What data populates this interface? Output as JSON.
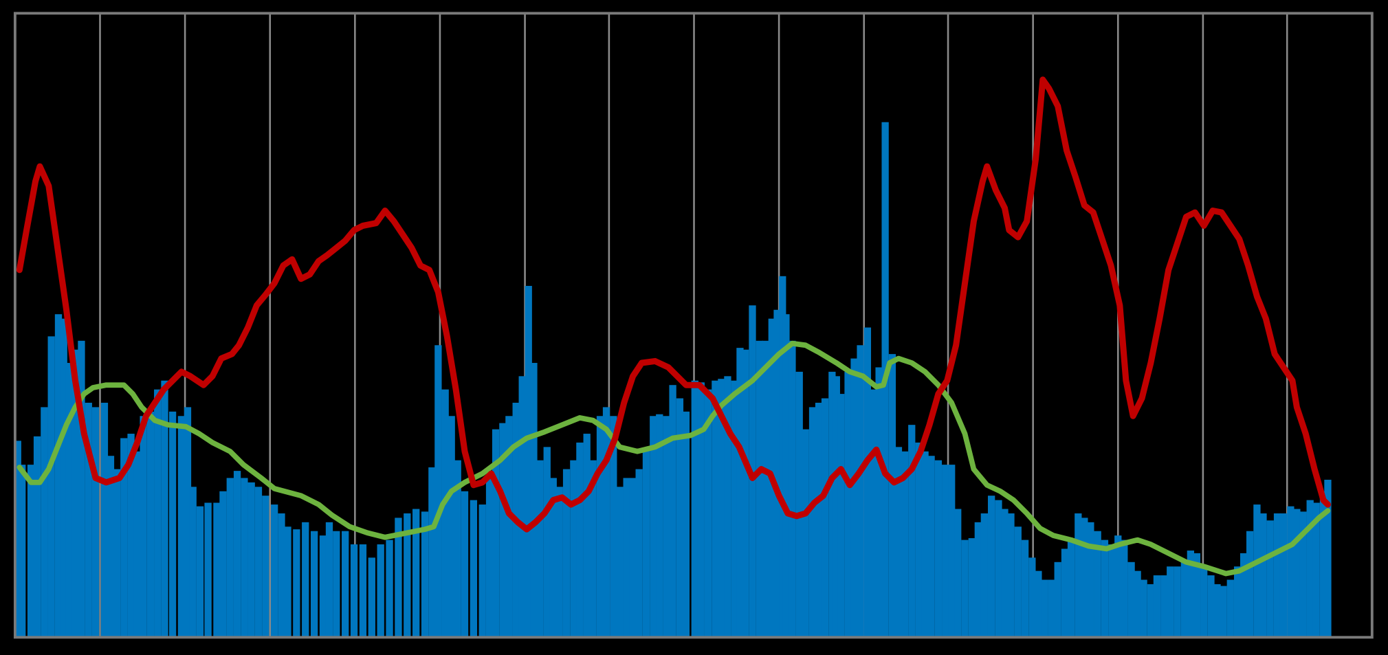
{
  "chart_data": {
    "type": "bar",
    "xlim": [
      17,
      1550
    ],
    "ylim": [
      0,
      705
    ],
    "xticks": [
      17,
      113,
      209,
      305,
      401,
      497,
      593,
      688,
      784,
      880,
      976,
      1071,
      1167,
      1263,
      1359,
      1454,
      1550
    ],
    "grid": true,
    "series": [
      {
        "type": "bar",
        "color": "#0077c0",
        "x": [
          20,
          25,
          35,
          42,
          50,
          58,
          66,
          72,
          78,
          85,
          92,
          100,
          108,
          118,
          125,
          132,
          140,
          148,
          155,
          162,
          170,
          178,
          186,
          195,
          205,
          212,
          218,
          226,
          235,
          245,
          252,
          260,
          268,
          276,
          284,
          292,
          300,
          310,
          318,
          325,
          335,
          345,
          355,
          365,
          372,
          380,
          390,
          400,
          410,
          420,
          430,
          440,
          450,
          460,
          470,
          480,
          488,
          495,
          503,
          510,
          517,
          525,
          535,
          545,
          553,
          560,
          568,
          575,
          583,
          590,
          597,
          603,
          610,
          618,
          625,
          632,
          640,
          648,
          655,
          663,
          670,
          678,
          685,
          693,
          700,
          708,
          715,
          722,
          730,
          738,
          745,
          753,
          760,
          768,
          775,
          785,
          792,
          800,
          808,
          815,
          822,
          830,
          836,
          842,
          850,
          858,
          865,
          872,
          878,
          884,
          888,
          895,
          903,
          910,
          918,
          925,
          932,
          940,
          945,
          950,
          958,
          965,
          972,
          980,
          986,
          993,
          1000,
          1008,
          1015,
          1022,
          1030,
          1038,
          1045,
          1052,
          1060,
          1068,
          1075,
          1082,
          1090,
          1098,
          1105,
          1112,
          1120,
          1128,
          1135,
          1142,
          1150,
          1158,
          1166,
          1173,
          1180,
          1188,
          1195,
          1203,
          1210,
          1218,
          1225,
          1232,
          1240,
          1248,
          1256,
          1263,
          1270,
          1278,
          1285,
          1292,
          1300,
          1307,
          1315,
          1322,
          1330,
          1338,
          1345,
          1352,
          1360,
          1368,
          1375,
          1382,
          1390,
          1398,
          1405,
          1412,
          1420,
          1427,
          1435,
          1443,
          1450,
          1458,
          1465,
          1472,
          1480,
          1487,
          1495,
          1500
        ],
        "values": [
          222,
          195,
          195,
          227,
          260,
          340,
          365,
          360,
          310,
          325,
          335,
          265,
          260,
          265,
          205,
          190,
          225,
          230,
          210,
          250,
          255,
          280,
          290,
          255,
          250,
          260,
          170,
          148,
          152,
          152,
          165,
          180,
          188,
          180,
          175,
          170,
          160,
          150,
          140,
          125,
          122,
          130,
          120,
          115,
          130,
          120,
          120,
          105,
          105,
          90,
          105,
          110,
          135,
          140,
          145,
          142,
          192,
          330,
          280,
          250,
          200,
          165,
          155,
          150,
          180,
          235,
          242,
          250,
          265,
          295,
          397,
          310,
          200,
          215,
          180,
          170,
          190,
          200,
          220,
          230,
          200,
          250,
          260,
          250,
          170,
          180,
          180,
          190,
          212,
          250,
          252,
          250,
          285,
          270,
          255,
          290,
          288,
          280,
          290,
          292,
          295,
          290,
          327,
          325,
          375,
          335,
          335,
          360,
          370,
          408,
          365,
          335,
          300,
          235,
          260,
          265,
          270,
          300,
          295,
          275,
          300,
          315,
          330,
          350,
          280,
          305,
          582,
          320,
          215,
          210,
          240,
          220,
          210,
          205,
          200,
          195,
          195,
          145,
          110,
          112,
          130,
          140,
          160,
          155,
          145,
          140,
          125,
          110,
          90,
          75,
          65,
          65,
          85,
          100,
          110,
          140,
          135,
          130,
          120,
          110,
          105,
          115,
          110,
          85,
          75,
          65,
          60,
          70,
          70,
          80,
          80,
          85,
          98,
          95,
          80,
          70,
          60,
          58,
          65,
          80,
          95,
          120,
          150,
          140,
          132,
          140,
          140,
          148,
          145,
          142,
          155,
          152,
          165,
          178
        ]
      },
      {
        "type": "line",
        "color": "#6db33f",
        "x": [
          22,
          35,
          45,
          55,
          65,
          75,
          85,
          95,
          105,
          120,
          140,
          150,
          160,
          175,
          190,
          210,
          225,
          240,
          260,
          275,
          295,
          310,
          340,
          360,
          375,
          395,
          415,
          435,
          455,
          480,
          490,
          500,
          510,
          525,
          545,
          565,
          580,
          595,
          615,
          635,
          655,
          670,
          685,
          700,
          720,
          740,
          760,
          780,
          795,
          805,
          815,
          830,
          850,
          865,
          880,
          895,
          910,
          925,
          945,
          960,
          975,
          990,
          998,
          1005,
          1015,
          1030,
          1045,
          1060,
          1075,
          1090,
          1100,
          1115,
          1130,
          1145,
          1160,
          1175,
          1190,
          1210,
          1230,
          1250,
          1265,
          1285,
          1300,
          1320,
          1340,
          1360,
          1385,
          1400,
          1420,
          1440,
          1460,
          1475,
          1490,
          1500
        ],
        "values": [
          192,
          175,
          175,
          190,
          215,
          240,
          260,
          275,
          282,
          285,
          285,
          275,
          260,
          245,
          240,
          238,
          230,
          220,
          210,
          195,
          180,
          168,
          160,
          150,
          138,
          125,
          118,
          113,
          117,
          122,
          125,
          150,
          165,
          175,
          185,
          200,
          215,
          225,
          232,
          240,
          248,
          245,
          235,
          215,
          210,
          215,
          225,
          228,
          235,
          250,
          262,
          275,
          290,
          305,
          320,
          332,
          330,
          322,
          310,
          300,
          295,
          283,
          285,
          310,
          315,
          310,
          300,
          285,
          265,
          230,
          190,
          172,
          165,
          155,
          140,
          123,
          115,
          110,
          103,
          100,
          105,
          110,
          105,
          95,
          85,
          80,
          72,
          75,
          85,
          95,
          105,
          120,
          135,
          143
        ]
      },
      {
        "type": "line",
        "color": "#c00000",
        "x": [
          22,
          30,
          40,
          45,
          55,
          65,
          75,
          85,
          95,
          108,
          120,
          135,
          145,
          155,
          165,
          175,
          185,
          195,
          205,
          215,
          230,
          240,
          250,
          262,
          270,
          280,
          290,
          300,
          310,
          320,
          330,
          340,
          350,
          360,
          370,
          380,
          390,
          400,
          410,
          425,
          435,
          445,
          455,
          465,
          475,
          485,
          495,
          505,
          515,
          525,
          535,
          545,
          555,
          565,
          575,
          585,
          595,
          605,
          615,
          625,
          635,
          645,
          655,
          665,
          675,
          685,
          695,
          705,
          715,
          725,
          740,
          755,
          765,
          775,
          790,
          805,
          815,
          825,
          835,
          850,
          860,
          870,
          880,
          890,
          900,
          910,
          920,
          930,
          940,
          950,
          960,
          970,
          980,
          990,
          1000,
          1010,
          1020,
          1030,
          1040,
          1050,
          1060,
          1070,
          1080,
          1090,
          1100,
          1110,
          1115,
          1125,
          1135,
          1140,
          1150,
          1160,
          1170,
          1178,
          1185,
          1195,
          1205,
          1215,
          1225,
          1235,
          1245,
          1255,
          1265,
          1272,
          1280,
          1290,
          1300,
          1310,
          1320,
          1330,
          1340,
          1350,
          1360,
          1370,
          1380,
          1390,
          1400,
          1410,
          1420,
          1430,
          1440,
          1450,
          1460,
          1465,
          1475,
          1485,
          1495,
          1500
        ],
        "values": [
          415,
          460,
          515,
          532,
          510,
          440,
          370,
          290,
          230,
          180,
          175,
          180,
          195,
          220,
          250,
          265,
          280,
          290,
          300,
          295,
          285,
          295,
          315,
          320,
          330,
          350,
          375,
          387,
          400,
          420,
          427,
          405,
          410,
          425,
          432,
          440,
          448,
          460,
          465,
          468,
          482,
          470,
          455,
          440,
          420,
          415,
          390,
          340,
          280,
          210,
          172,
          175,
          185,
          165,
          140,
          130,
          122,
          130,
          140,
          155,
          158,
          150,
          155,
          165,
          185,
          200,
          225,
          265,
          295,
          310,
          312,
          305,
          295,
          285,
          285,
          270,
          250,
          230,
          215,
          180,
          190,
          185,
          160,
          140,
          137,
          140,
          152,
          160,
          180,
          190,
          172,
          185,
          200,
          212,
          185,
          175,
          180,
          190,
          210,
          240,
          275,
          290,
          330,
          400,
          470,
          515,
          532,
          505,
          485,
          460,
          452,
          470,
          540,
          630,
          620,
          600,
          550,
          520,
          488,
          480,
          450,
          420,
          375,
          290,
          250,
          270,
          310,
          360,
          415,
          445,
          475,
          480,
          465,
          482,
          480,
          465,
          450,
          420,
          385,
          360,
          320,
          305,
          290,
          260,
          230,
          190,
          155,
          150
        ]
      }
    ]
  }
}
